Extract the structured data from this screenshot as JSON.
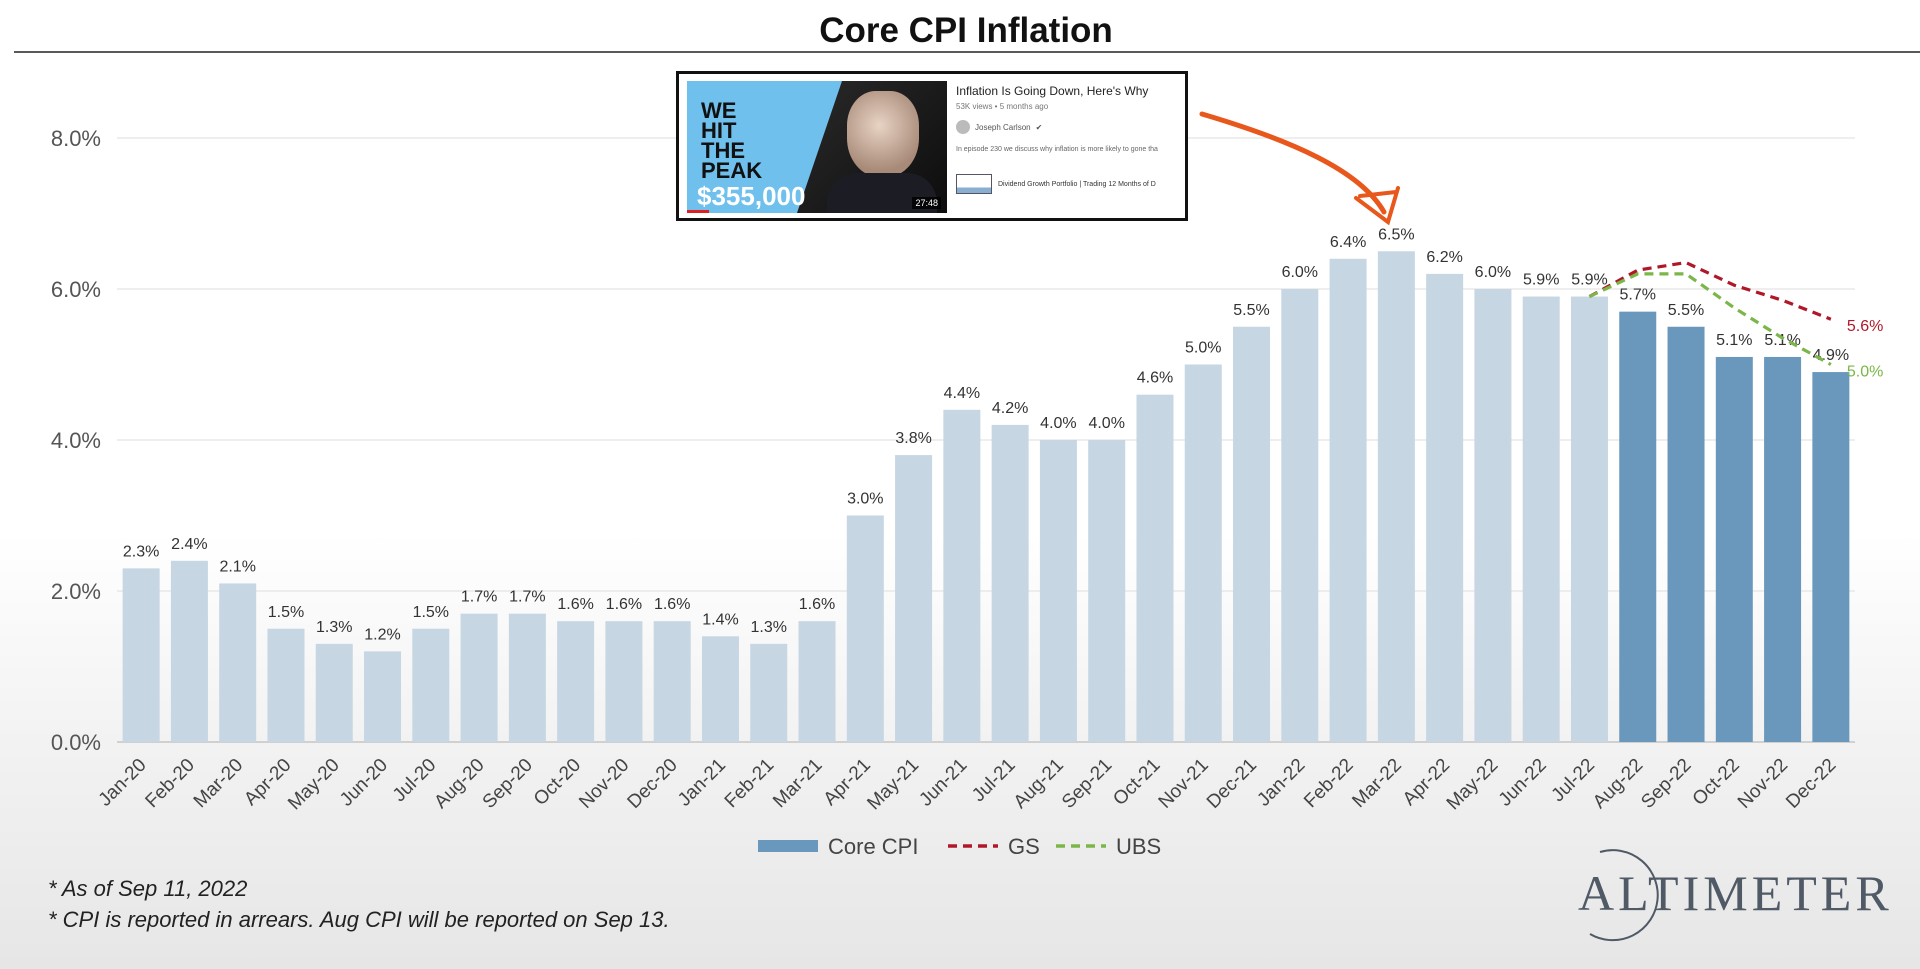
{
  "chart_data": {
    "type": "bar",
    "title": "Core CPI Inflation",
    "categories": [
      "Jan-20",
      "Feb-20",
      "Mar-20",
      "Apr-20",
      "May-20",
      "Jun-20",
      "Jul-20",
      "Aug-20",
      "Sep-20",
      "Oct-20",
      "Nov-20",
      "Dec-20",
      "Jan-21",
      "Feb-21",
      "Mar-21",
      "Apr-21",
      "May-21",
      "Jun-21",
      "Jul-21",
      "Aug-21",
      "Sep-21",
      "Oct-21",
      "Nov-21",
      "Dec-21",
      "Jan-22",
      "Feb-22",
      "Mar-22",
      "Apr-22",
      "May-22",
      "Jun-22",
      "Jul-22",
      "Aug-22",
      "Sep-22",
      "Oct-22",
      "Nov-22",
      "Dec-22"
    ],
    "values": [
      2.3,
      2.4,
      2.1,
      1.5,
      1.3,
      1.2,
      1.5,
      1.7,
      1.7,
      1.6,
      1.6,
      1.6,
      1.4,
      1.3,
      1.6,
      3.0,
      3.8,
      4.4,
      4.2,
      4.0,
      4.0,
      4.6,
      5.0,
      5.5,
      6.0,
      6.4,
      6.5,
      6.2,
      6.0,
      5.9,
      5.9,
      5.7,
      5.5,
      5.1,
      5.1,
      4.9
    ],
    "data_labels": [
      "2.3%",
      "2.4%",
      "2.1%",
      "1.5%",
      "1.3%",
      "1.2%",
      "1.5%",
      "1.7%",
      "1.7%",
      "1.6%",
      "1.6%",
      "1.6%",
      "1.4%",
      "1.3%",
      "1.6%",
      "3.0%",
      "3.8%",
      "4.4%",
      "4.2%",
      "4.0%",
      "4.0%",
      "4.6%",
      "5.0%",
      "5.5%",
      "6.0%",
      "6.4%",
      "6.5%",
      "6.2%",
      "6.0%",
      "5.9%",
      "5.9%",
      "5.7%",
      "5.5%",
      "5.1%",
      "5.1%",
      "4.9%"
    ],
    "forecast_from_index": 31,
    "series": [
      {
        "name": "Core CPI",
        "color": "#6a98bc",
        "values_ref": "values"
      },
      {
        "name": "GS",
        "color": "#b0182a",
        "style": "dashed",
        "x": [
          "Jul-22",
          "Aug-22",
          "Sep-22",
          "Oct-22",
          "Nov-22",
          "Dec-22"
        ],
        "values": [
          5.9,
          6.25,
          6.35,
          6.05,
          5.85,
          5.6
        ],
        "end_label": "5.6%"
      },
      {
        "name": "UBS",
        "color": "#7ab648",
        "style": "dashed",
        "x": [
          "Jul-22",
          "Aug-22",
          "Sep-22",
          "Oct-22",
          "Nov-22",
          "Dec-22"
        ],
        "values": [
          5.9,
          6.2,
          6.2,
          5.75,
          5.35,
          5.0
        ],
        "end_label": "5.0%"
      }
    ],
    "yticks": [
      "0.0%",
      "2.0%",
      "4.0%",
      "6.0%",
      "8.0%"
    ],
    "ytick_values": [
      0,
      2,
      4,
      6,
      8
    ],
    "ylim": [
      0,
      8.7
    ],
    "grid": true,
    "legend_position": "bottom",
    "colors": {
      "actual_bar": "#c6d6e3",
      "forecast_bar": "#6a98bc",
      "gs": "#b0182a",
      "ubs": "#7ab648",
      "arrow": "#e8581c"
    }
  },
  "footnotes": {
    "line1": "* As of Sep 11, 2022",
    "line2": "* CPI is reported in arrears. Aug CPI will be reported on Sep 13."
  },
  "logo": {
    "text": "ALTIMETER"
  },
  "video_card": {
    "title": "Inflation Is Going Down, Here's Why",
    "meta": "53K views • 5 months ago",
    "channel": "Joseph Carlson",
    "description": "In episode 230 we discuss why inflation is more likely to gone tha",
    "playlist": "Dividend Growth Portfolio | Trading 12 Months of D",
    "thumb_text": "WE HIT THE PEAK",
    "thumb_money": "$355,000",
    "thumb_duration": "27:48"
  }
}
